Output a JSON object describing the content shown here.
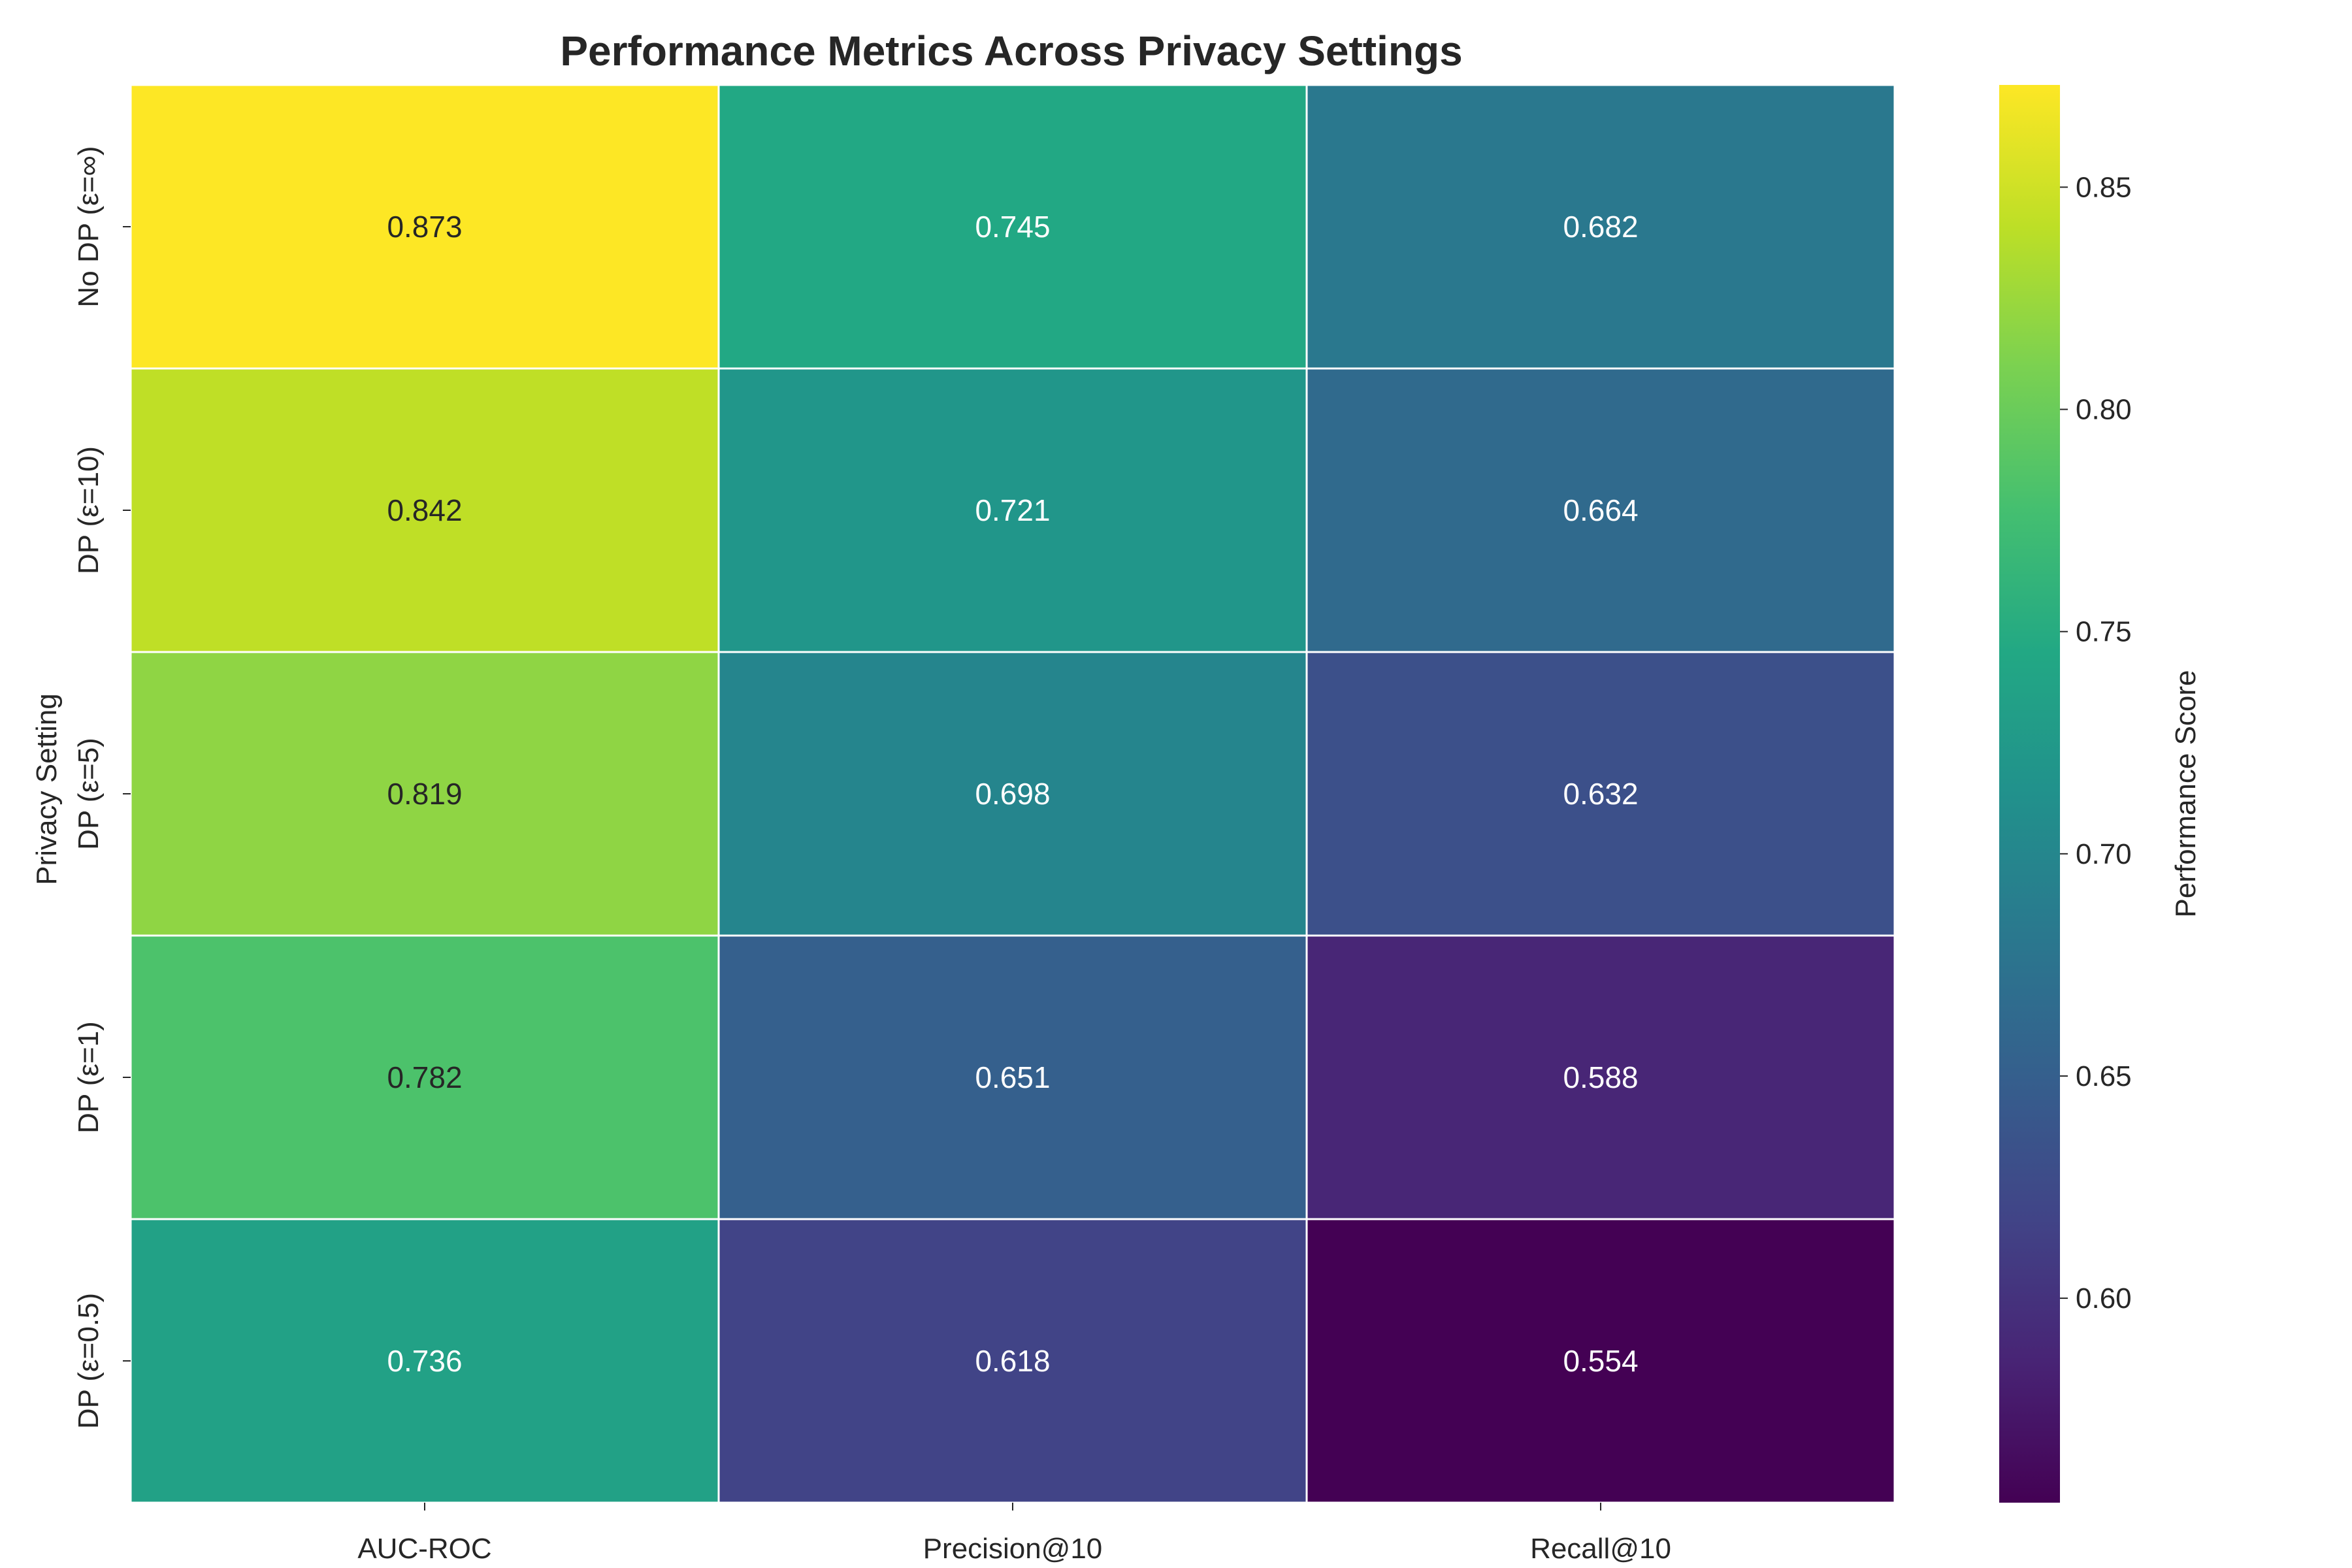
{
  "chart_data": {
    "type": "heatmap",
    "title": "Performance Metrics Across Privacy Settings",
    "xlabel": "",
    "ylabel": "Privacy Setting",
    "columns": [
      "AUC-ROC",
      "Precision@10",
      "Recall@10"
    ],
    "rows": [
      "No DP (ε=∞)",
      "DP (ε=10)",
      "DP (ε=5)",
      "DP (ε=1)",
      "DP (ε=0.5)"
    ],
    "values": [
      [
        0.873,
        0.745,
        0.682
      ],
      [
        0.842,
        0.721,
        0.664
      ],
      [
        0.819,
        0.698,
        0.632
      ],
      [
        0.782,
        0.651,
        0.588
      ],
      [
        0.736,
        0.618,
        0.554
      ]
    ],
    "value_labels": [
      [
        "0.873",
        "0.745",
        "0.682"
      ],
      [
        "0.842",
        "0.721",
        "0.664"
      ],
      [
        "0.819",
        "0.698",
        "0.632"
      ],
      [
        "0.782",
        "0.651",
        "0.588"
      ],
      [
        "0.736",
        "0.618",
        "0.554"
      ]
    ],
    "colormap": "viridis",
    "vmin": 0.554,
    "vmax": 0.873,
    "colorbar": {
      "label": "Performance Score",
      "ticks": [
        0.6,
        0.65,
        0.7,
        0.75,
        0.8,
        0.85
      ],
      "tick_labels": [
        "0.60",
        "0.65",
        "0.70",
        "0.75",
        "0.80",
        "0.85"
      ]
    },
    "grid_line_color": "#ffffff"
  }
}
